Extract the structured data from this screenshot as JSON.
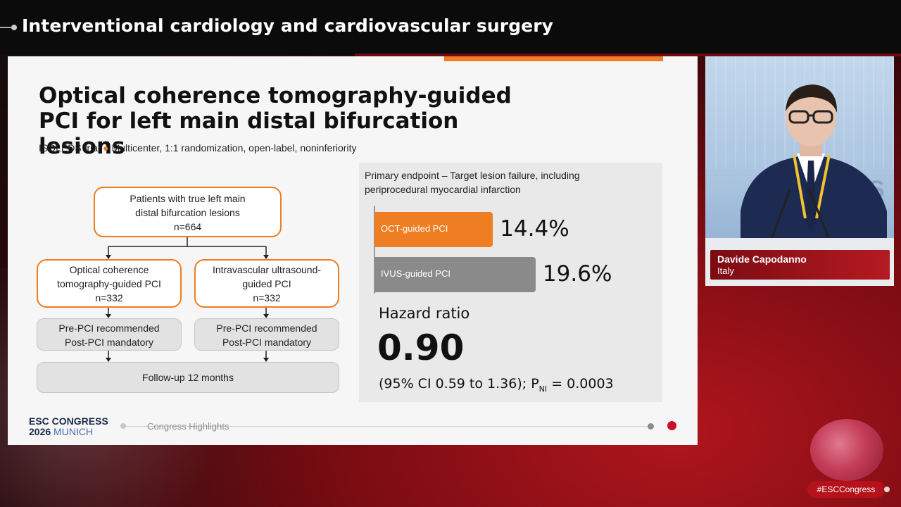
{
  "session_title": "Interventional cardiology and cardiovascular surgery",
  "slide": {
    "title_lines": [
      "Optical coherence tomography-guided",
      "PCI for left main distal bifurcation lesions"
    ],
    "subtitle_trial": "ISOLEDS trial",
    "subtitle_details": "Multicenter, 1:1 randomization, open-label, noninferiority",
    "flow": {
      "population_lines": [
        "Patients with true left main",
        "distal bifurcation lesions",
        "n=664"
      ],
      "arm_oct_lines": [
        "Optical coherence",
        "tomography-guided PCI",
        "n=332"
      ],
      "arm_ivus_lines": [
        "Intravascular ultrasound-",
        "guided PCI",
        "n=332"
      ],
      "imaging_oct_lines": [
        "Pre-PCI recommended",
        "Post-PCI mandatory"
      ],
      "imaging_ivus_lines": [
        "Pre-PCI recommended",
        "Post-PCI mandatory"
      ],
      "followup": "Follow-up 12 months"
    },
    "result": {
      "endpoint_lines": [
        "Primary endpoint – Target lesion failure, including",
        "periprocedural myocardial infarction"
      ],
      "hazard_ratio_label": "Hazard ratio",
      "hazard_ratio_value": "0.90",
      "ci_prefix": "(95% CI 0.59 to 1.36); P",
      "ci_subscript": "NI",
      "ci_suffix": " = 0.0003"
    },
    "footer": {
      "logo_line1": "ESC CONGRESS",
      "logo_year": "2026",
      "logo_city": "MUNICH",
      "label": "Congress Highlights"
    }
  },
  "chart_data": {
    "type": "bar",
    "orientation": "horizontal",
    "categories": [
      "OCT-guided PCI",
      "IVUS-guided PCI"
    ],
    "values": [
      14.4,
      19.6
    ],
    "value_labels": [
      "14.4%",
      "19.6%"
    ],
    "colors": [
      "#ef7d22",
      "#8a8a8a"
    ],
    "xlim": [
      0,
      25
    ]
  },
  "speaker": {
    "name": "Davide Capodanno",
    "country": "Italy",
    "video_background_text": "S"
  },
  "hashtag": "#ESCCongress"
}
